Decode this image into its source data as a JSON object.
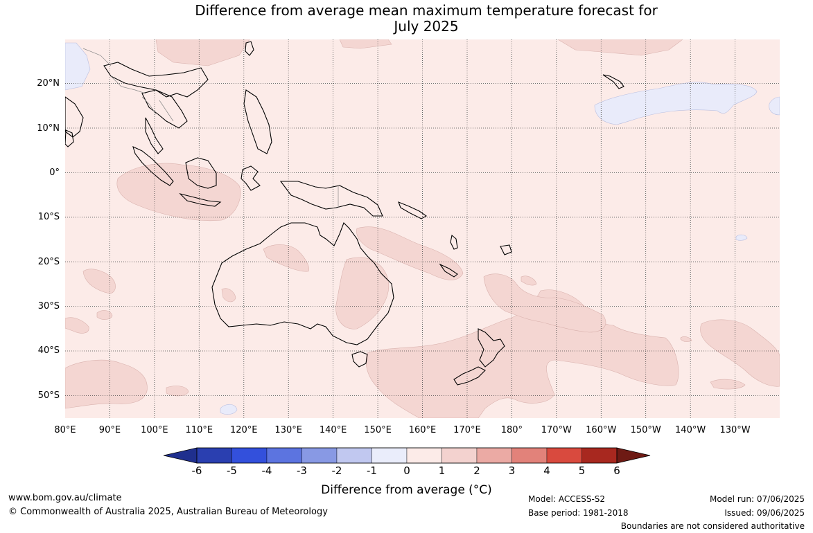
{
  "title": {
    "line1": "Difference from average mean maximum temperature forecast for",
    "line2": "July 2025"
  },
  "map": {
    "lat_labels": [
      "20°N",
      "10°N",
      "0°",
      "10°S",
      "20°S",
      "30°S",
      "40°S",
      "50°S"
    ],
    "lon_labels": [
      "80°E",
      "90°E",
      "100°E",
      "110°E",
      "120°E",
      "130°E",
      "140°E",
      "150°E",
      "160°E",
      "170°E",
      "180°",
      "170°W",
      "160°W",
      "150°W",
      "140°W",
      "130°W"
    ],
    "lat_range": [
      -55,
      30
    ],
    "lon_range": [
      80,
      240
    ],
    "background_category": "0 to 1",
    "warm_areas_category": "1 to 2",
    "cool_areas_category": "-1 to 0"
  },
  "colorbar": {
    "ticks": [
      "-6",
      "-5",
      "-4",
      "-3",
      "-2",
      "-1",
      "0",
      "1",
      "2",
      "3",
      "4",
      "5",
      "6"
    ],
    "colors": [
      "#1f2f8e",
      "#2a3fb0",
      "#3350dc",
      "#5c74e0",
      "#8899e4",
      "#c1c8f0",
      "#eaedfb",
      "#fcebe8",
      "#f3d2cf",
      "#ebaaa4",
      "#e2827a",
      "#d94a3e",
      "#a8281f",
      "#6e1a14"
    ],
    "label": "Difference from average (°C)"
  },
  "footer": {
    "website": "www.bom.gov.au/climate",
    "copyright": "© Commonwealth of Australia 2025, Australian Bureau of Meteorology",
    "model": "Model: ACCESS-S2",
    "base_period": "Base period: 1981-2018",
    "model_run": "Model run: 07/06/2025",
    "issued": "Issued: 09/06/2025",
    "disclaimer": "Boundaries are not considered authoritative"
  }
}
